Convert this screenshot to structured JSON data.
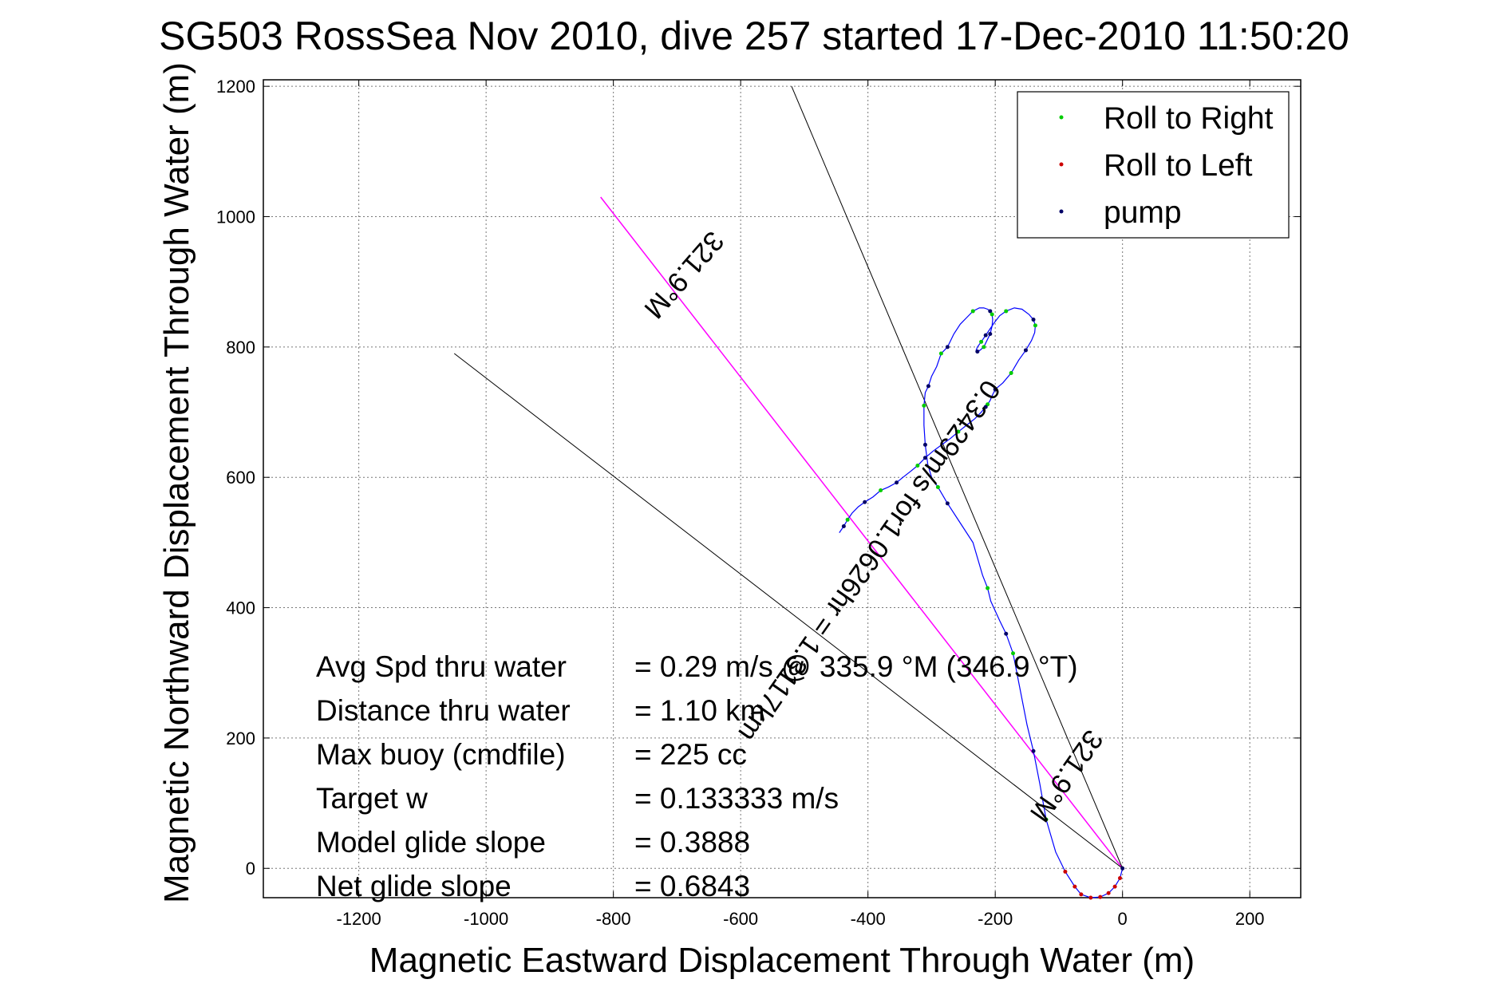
{
  "chart_data": {
    "type": "line",
    "title": "SG503 RossSea Nov 2010, dive 257 started 17-Dec-2010 11:50:20",
    "xlabel": "Magnetic Eastward Displacement Through Water (m)",
    "ylabel": "Magnetic Northward Displacement Through Water (m)",
    "xlim": [
      -1350,
      280
    ],
    "ylim": [
      -45,
      1210
    ],
    "xticks": [
      -1200,
      -1000,
      -800,
      -600,
      -400,
      -200,
      0,
      200
    ],
    "yticks": [
      0,
      200,
      400,
      600,
      800,
      1000,
      1200
    ],
    "grid": true,
    "legend": {
      "position": "top-right",
      "entries": [
        {
          "label": "Roll to Right",
          "color": "#00cc00"
        },
        {
          "label": "Roll to Left",
          "color": "#cc0000"
        },
        {
          "label": "pump",
          "color": "#000066"
        }
      ]
    },
    "track": {
      "name": "glider track",
      "color": "#0000ff",
      "x": [
        0,
        -4,
        -12,
        -22,
        -35,
        -50,
        -65,
        -75,
        -90,
        -105,
        -120,
        -130,
        -140,
        -150,
        -160,
        -172,
        -183,
        -193,
        -200,
        -207,
        -212,
        -220,
        -235,
        -255,
        -275,
        -290,
        -300,
        -306,
        -310,
        -312,
        -312,
        -310,
        -305,
        -300,
        -292,
        -285,
        -275,
        -265,
        -255,
        -245,
        -235,
        -225,
        -218,
        -212,
        -208,
        -205,
        -204,
        -205,
        -208,
        -213,
        -218,
        -224,
        -228,
        -230,
        -228,
        -222,
        -215,
        -208,
        -201,
        -193,
        -183,
        -170,
        -158,
        -147,
        -140,
        -137,
        -138,
        -143,
        -152,
        -163,
        -175,
        -188,
        -200,
        -205,
        -208,
        -212,
        -215,
        -222,
        -232,
        -245,
        -258,
        -270,
        -284,
        -298,
        -310,
        -322,
        -332,
        -345,
        -355,
        -368,
        -380,
        -392,
        -405,
        -415,
        -425,
        -432,
        -438,
        -445
      ],
      "y": [
        0,
        -15,
        -28,
        -38,
        -44,
        -45,
        -40,
        -28,
        -5,
        25,
        75,
        130,
        180,
        220,
        270,
        330,
        360,
        380,
        395,
        410,
        430,
        450,
        500,
        530,
        560,
        585,
        600,
        620,
        650,
        680,
        710,
        730,
        740,
        755,
        770,
        790,
        800,
        820,
        835,
        845,
        855,
        860,
        860,
        858,
        855,
        850,
        842,
        832,
        820,
        810,
        800,
        795,
        793,
        795,
        800,
        808,
        818,
        828,
        838,
        848,
        855,
        860,
        858,
        850,
        842,
        833,
        822,
        810,
        795,
        780,
        760,
        745,
        735,
        725,
        718,
        712,
        708,
        700,
        690,
        680,
        670,
        660,
        650,
        640,
        630,
        618,
        610,
        600,
        592,
        585,
        580,
        570,
        562,
        555,
        545,
        535,
        525,
        515
      ]
    },
    "reference_lines": [
      {
        "name": "heading line 321.9°M",
        "color": "#ff00ff",
        "x": [
          0,
          -820
        ],
        "y": [
          0,
          1030
        ]
      },
      {
        "name": "black line 1",
        "color": "#000000",
        "x": [
          0,
          -520
        ],
        "y": [
          0,
          1200
        ]
      },
      {
        "name": "black line 2",
        "color": "#000000",
        "x": [
          0,
          -1050
        ],
        "y": [
          0,
          790
        ]
      }
    ],
    "rotated_labels": [
      {
        "text": "321.9°M",
        "x": -700,
        "y": 920,
        "rotation": 131
      },
      {
        "text": "0.3429m/s for1.0626hr = 1.3117km",
        "x": -410,
        "y": 480,
        "rotation": 125
      },
      {
        "text": "321.9°M",
        "x": -100,
        "y": 150,
        "rotation": 125
      }
    ],
    "stats": [
      {
        "label": "Avg Spd thru water",
        "value": "=  0.29 m/s @ 335.9 °M (346.9 °T)"
      },
      {
        "label": "Distance thru water",
        "value": "=  1.10 km"
      },
      {
        "label": "Max buoy (cmdfile)",
        "value": "= 225 cc"
      },
      {
        "label": "Target w",
        "value": "= 0.133333 m/s"
      },
      {
        "label": "Model glide slope",
        "value": "= 0.3888"
      },
      {
        "label": "Net glide slope",
        "value": "= 0.6843"
      }
    ]
  }
}
